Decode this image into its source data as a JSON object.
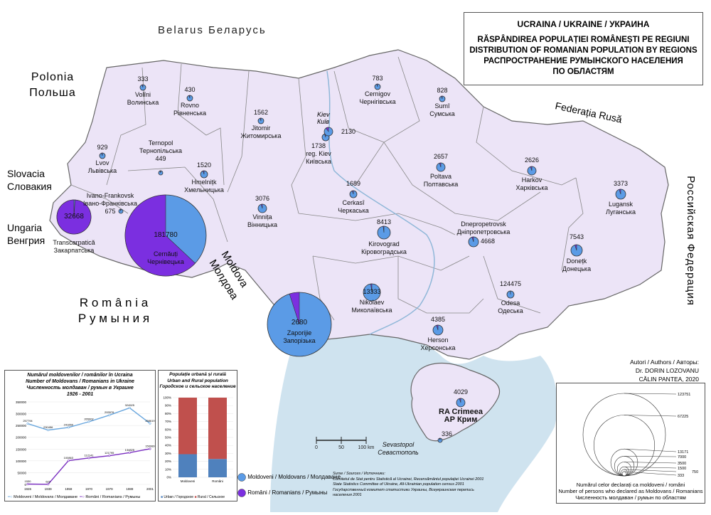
{
  "title": {
    "country": "UCRAINA / UKRAINE / УКРАИНА",
    "line1": "RĂSPÂNDIREA POPULAȚIEI ROMÂNEȘTI PE REGIUNI",
    "line2": "DISTRIBUTION OF ROMANIAN POPULATION BY REGIONS",
    "line3": "РАСПРОСТРАНЕНИЕ РУМЫНСКОГО НАСЕЛЕНИЯ",
    "line4": "ПО ОБЛАСТЯМ"
  },
  "countries": {
    "belarus": "Belarus  Беларусь",
    "poland_ro": "Polonia",
    "poland_ru": "Польша",
    "russia_ro": "Federația Rusă",
    "russia_ru": "Российская Федерация",
    "slovakia_ro": "Slovacia",
    "slovakia_ru": "Словакия",
    "hungary_ro": "Ungaria",
    "hungary_ru": "Венгрия",
    "romania_ro": "R o m â n i a",
    "romania_ru": "Р у м ы н и я",
    "moldova_ro": "Moldova",
    "moldova_ru": "Молдова"
  },
  "regions": [
    {
      "name": "Volîni",
      "name_ru": "Волинська",
      "total": "333",
      "romanian_share": 0.05
    },
    {
      "name": "Rovno",
      "name_ru": "Рівненська",
      "total": "430",
      "romanian_share": 0.05
    },
    {
      "name": "Jitomir",
      "name_ru": "Житомирська",
      "total": "1562",
      "romanian_share": 0.05
    },
    {
      "name": "Cernigov",
      "name_ru": "Чернігівська",
      "total": "783",
      "romanian_share": 0.05
    },
    {
      "name": "Sumî",
      "name_ru": "Сумська",
      "total": "828",
      "romanian_share": 0.05
    },
    {
      "name": "Lvov",
      "name_ru": "Львівська",
      "total": "929",
      "romanian_share": 0.05
    },
    {
      "name": "Ternopol",
      "name_ru": "Тернопільська",
      "total": "449",
      "romanian_share": 0.05
    },
    {
      "name": "Hmelnițk",
      "name_ru": "Хмельницька",
      "total": "1520",
      "romanian_share": 0.05
    },
    {
      "name": "Ivano-Frankovsk",
      "name_ru": "Івано-Франківська",
      "total": "675",
      "romanian_share": 0.05
    },
    {
      "name": "Transcarpatică",
      "name_ru": "Закарпатська",
      "total": "32668",
      "romanian_share": 0.99
    },
    {
      "name": "Cernăuți",
      "name_ru": "Чернівецька",
      "total": "181780",
      "romanian_share": 0.63
    },
    {
      "name": "Vinnița",
      "name_ru": "Вінницька",
      "total": "3076",
      "romanian_share": 0.05
    },
    {
      "name": "reg. Kiev",
      "name_ru": "Київська",
      "total": "1738",
      "romanian_share": 0.05
    },
    {
      "name": "Kiev",
      "name_ru": "Київ",
      "total": "2130",
      "romanian_share": 0.1
    },
    {
      "name": "Cerkasî",
      "name_ru": "Черкаська",
      "total": "1689",
      "romanian_share": 0.05
    },
    {
      "name": "Poltava",
      "name_ru": "Полтавська",
      "total": "2657",
      "romanian_share": 0.05
    },
    {
      "name": "Harkov",
      "name_ru": "Харківська",
      "total": "2626",
      "romanian_share": 0.05
    },
    {
      "name": "Lugansk",
      "name_ru": "Луганська",
      "total": "3373",
      "romanian_share": 0.05
    },
    {
      "name": "Kirovograd",
      "name_ru": "Кіровоградська",
      "total": "8413",
      "romanian_share": 0.02
    },
    {
      "name": "Dnepropetrovsk",
      "name_ru": "Дніпропетровська",
      "total": "4668",
      "romanian_share": 0.05
    },
    {
      "name": "Donețk",
      "name_ru": "Донецька",
      "total": "7543",
      "romanian_share": 0.05
    },
    {
      "name": "Nikolaev",
      "name_ru": "Миколаївська",
      "total": "13333",
      "romanian_share": 0.02
    },
    {
      "name": "Zaporijie",
      "name_ru": "Запорізька",
      "total": "2680",
      "romanian_share": 0.05
    },
    {
      "name": "Odesa",
      "name_ru": "Одеська",
      "total": "124475",
      "romanian_share": 0.01
    },
    {
      "name": "Herson",
      "name_ru": "Херсонська",
      "total": "4385",
      "romanian_share": 0.05
    },
    {
      "name": "RA Crimeea",
      "name_ru": "АР Крим",
      "total": "4029",
      "romanian_share": 0.05
    },
    {
      "name": "Sevastopol",
      "name_ru": "Севастополь",
      "total": "336",
      "romanian_share": 0.05
    }
  ],
  "authors": {
    "label": "Autori / Authors / Авторы:",
    "a1": "Dr. DORIN LOZOVANU",
    "a2": "CĂLIN PANTEA, 2020"
  },
  "scale": {
    "l0": "0",
    "l1": "50",
    "l2": "100 km"
  },
  "legend": {
    "moldovans": "Moldoveni / Moldovans / Молдаване",
    "romanians": "Români / Romanians / Румыны",
    "color_moldovans": "#5b9be6",
    "color_romanians": "#7b2fe0"
  },
  "sources": {
    "head": "Surse / Sources / Источники:",
    "s1": "Comitetul de Stat pentru Statistică al Ucrainei, Recensământul populației Ucrainei 2001",
    "s2": "State Statistics Committee of Ukraine, All-Ukrainian population census 2001",
    "s3": "Государственный комитет статистики Украины, Всеукраинская перепись",
    "s4": "населения 2001"
  },
  "size_legend": {
    "values": [
      "123751",
      "67225",
      "13171",
      "7000",
      "3500",
      "1500",
      "750",
      "333"
    ],
    "l1": "Numărul celor declarați ca moldoveni / români",
    "l2": "Number of persons who declared as Moldovans / Romanians",
    "l3": "Численность молдаван / румын по областям"
  },
  "line_chart": {
    "title1": "Numărul moldovenilor / românilor în Ucraina",
    "title2": "Number of Moldovans / Romanians in Ukraine",
    "title3": "Численность молдаван / румын в Украине",
    "title4": "1926 - 2001",
    "legend_moldovans": "Moldoveni / Moldovans / Молдаване",
    "legend_romanians": "Români / Romanians / Румыны"
  },
  "bar_chart": {
    "title1": "Populație urbană și rurală",
    "title2": "Urban and Rural population",
    "title3": "Городское и сельское население",
    "legend_urban": "Urban / Городское",
    "legend_rural": "Rural / Сельское"
  },
  "chart_data": [
    {
      "type": "line",
      "x": [
        "1926",
        "1939",
        "1959",
        "1970",
        "1979",
        "1989",
        "2001"
      ],
      "ylim": [
        0,
        350000
      ],
      "yticks": [
        "0",
        "50000",
        "100000",
        "150000",
        "200000",
        "250000",
        "300000",
        "350000"
      ],
      "series": [
        {
          "name": "Moldoveni / Moldovans / Молдаване",
          "color": "#6aa7de",
          "values": [
            257794,
            230456,
            241650,
            265902,
            293576,
            324525,
            258619
          ]
        },
        {
          "name": "Români / Romanians / Румыны",
          "color": "#7a2fc0",
          "values": [
            1530,
            622,
            100863,
            112141,
            121795,
            134825,
            150989
          ]
        }
      ]
    },
    {
      "type": "bar",
      "categories": [
        "Moldoveni",
        "Români"
      ],
      "yticks": [
        "0%",
        "10%",
        "20%",
        "30%",
        "40%",
        "50%",
        "60%",
        "70%",
        "80%",
        "90%",
        "100%"
      ],
      "series": [
        {
          "name": "Urban / Городское",
          "color": "#4f81bd",
          "values": [
            29,
            23
          ]
        },
        {
          "name": "Rural / Сельское",
          "color": "#c0504d",
          "values": [
            71,
            77
          ]
        }
      ]
    }
  ]
}
